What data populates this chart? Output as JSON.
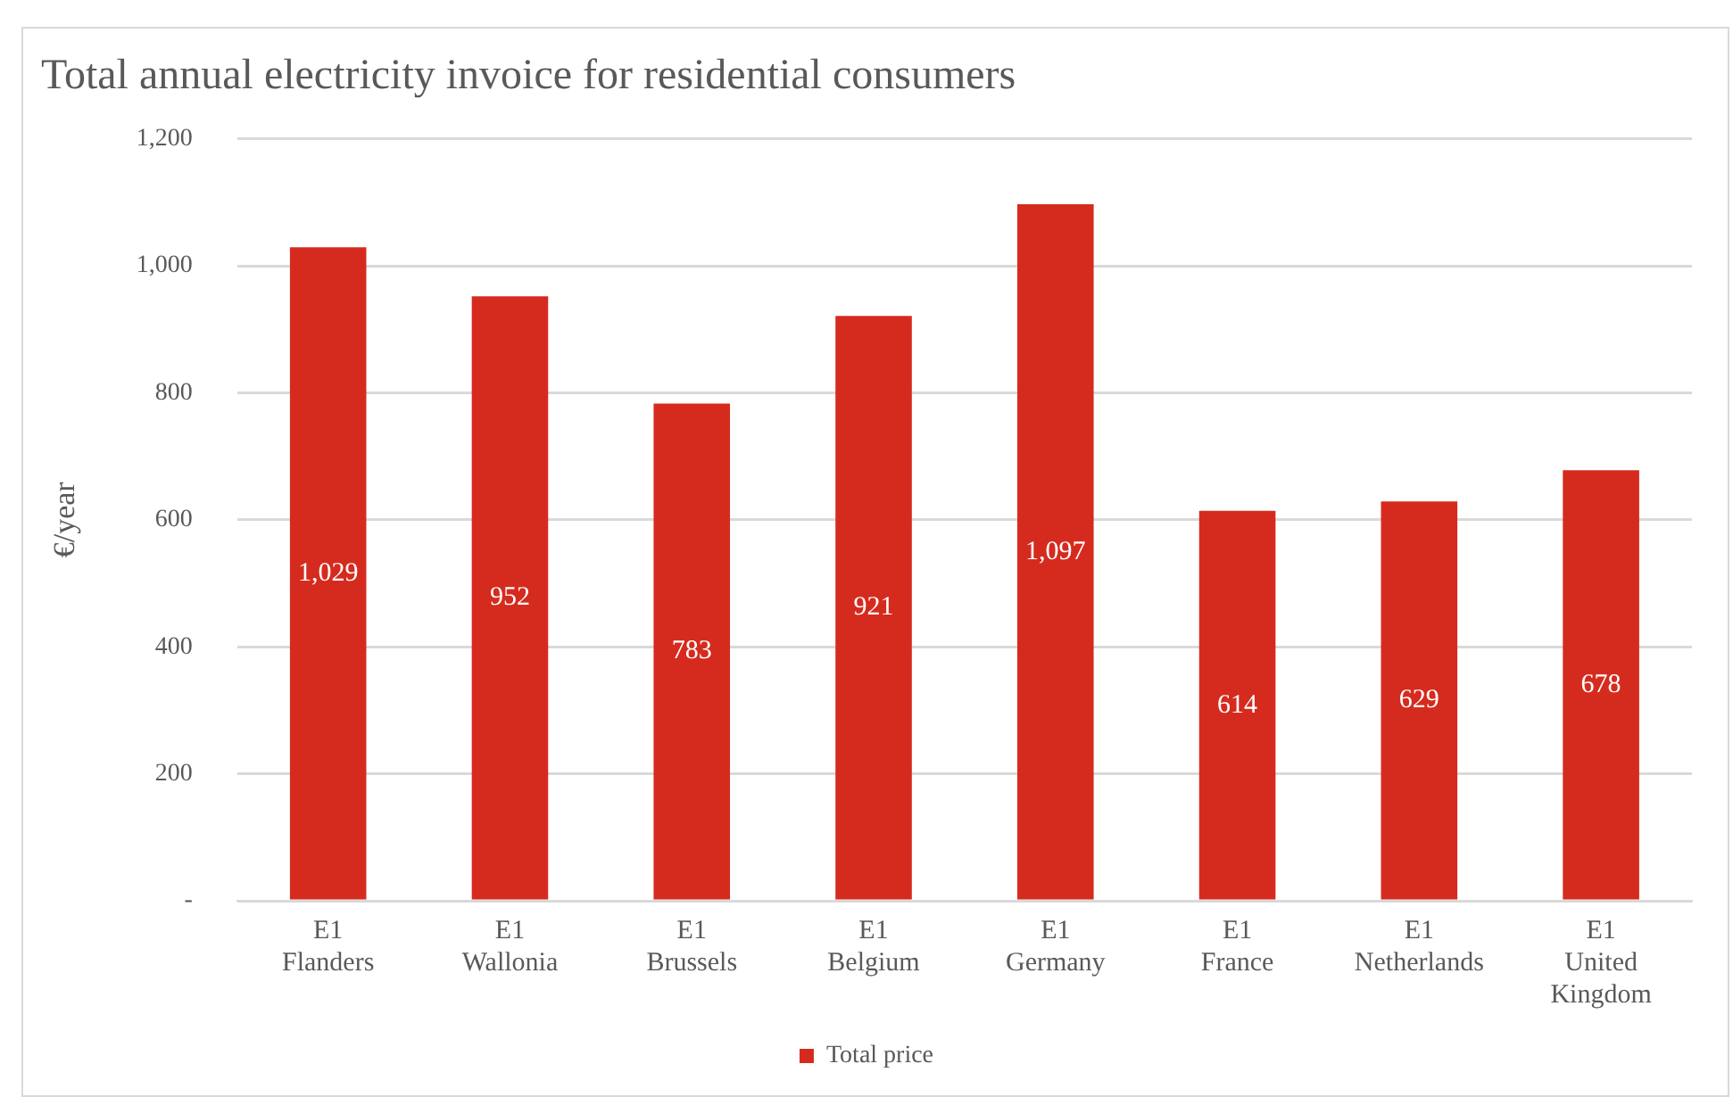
{
  "chart_data": {
    "type": "bar",
    "title": "Total annual electricity invoice for residential consumers",
    "ylabel": "€/year",
    "categories": [
      "E1\nFlanders",
      "E1\nWallonia",
      "E1\nBrussels",
      "E1\nBelgium",
      "E1\nGermany",
      "E1\nFrance",
      "E1\nNetherlands",
      "E1\nUnited Kingdom"
    ],
    "series": [
      {
        "name": "Total price",
        "color": "#d52b1e",
        "values": [
          1029,
          952,
          783,
          921,
          1097,
          614,
          629,
          678
        ],
        "value_labels": [
          "1,029",
          "952",
          "783",
          "921",
          "1,097",
          "614",
          "629",
          "678"
        ]
      }
    ],
    "ylim": [
      0,
      1200
    ],
    "yticks": [
      {
        "value": 0,
        "label": "-"
      },
      {
        "value": 200,
        "label": "200"
      },
      {
        "value": 400,
        "label": "400"
      },
      {
        "value": 600,
        "label": "600"
      },
      {
        "value": 800,
        "label": "800"
      },
      {
        "value": 1000,
        "label": "1,000"
      },
      {
        "value": 1200,
        "label": "1,200"
      }
    ],
    "grid": "y",
    "legend": "bottom"
  }
}
